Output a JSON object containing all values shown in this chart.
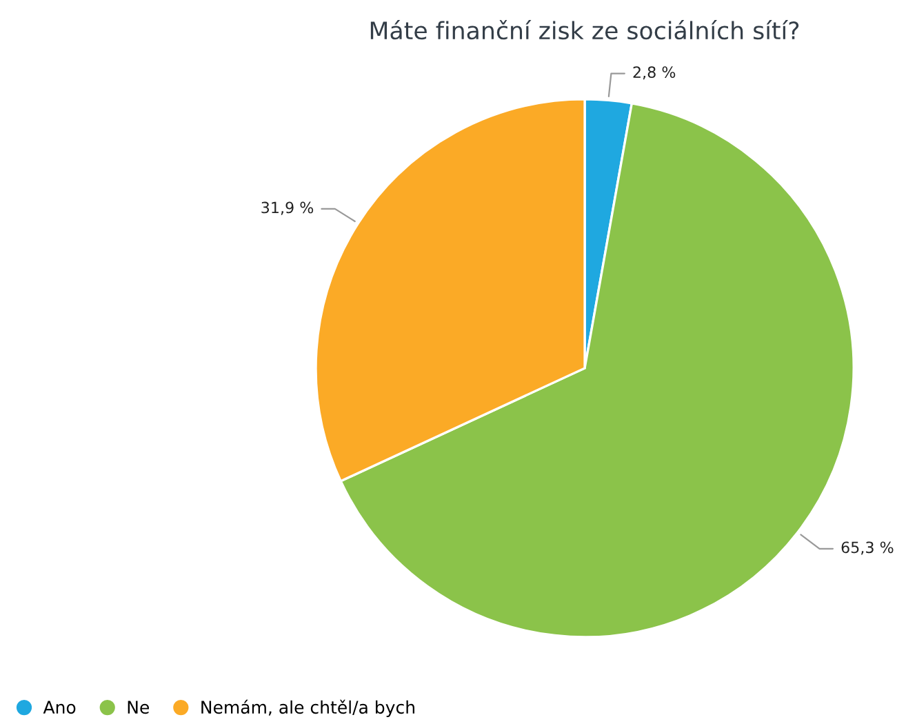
{
  "chart_data": {
    "type": "pie",
    "title": "Máte finanční zisk ze sociálních sítí?",
    "categories": [
      "Ano",
      "Ne",
      "Nemám, ale chtěl/a bych"
    ],
    "values": [
      2.8,
      65.3,
      31.9
    ],
    "colors": [
      "#1fa8e0",
      "#8bc34a",
      "#fbaa26"
    ],
    "value_labels": [
      "2,8 %",
      "65,3 %",
      "31,9 %"
    ],
    "legend": "bottom left"
  }
}
